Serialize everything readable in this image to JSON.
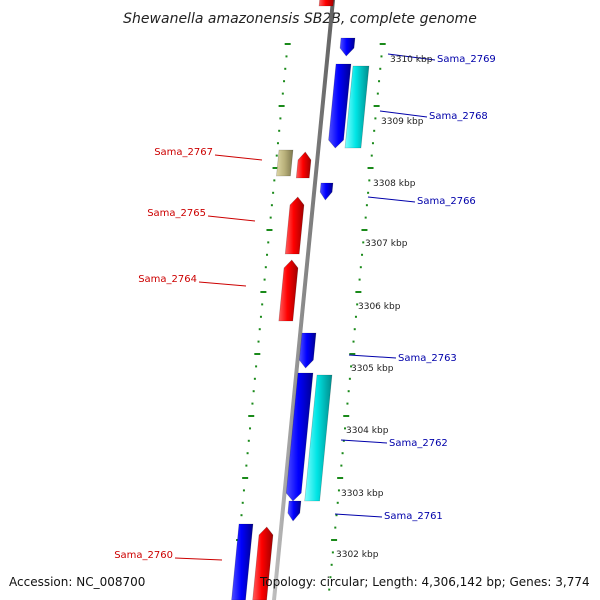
{
  "title": "Shewanella amazonensis SB2B, complete genome",
  "footer": {
    "accession": "Accession: NC_008700",
    "topology": "Topology: circular; Length: 4,306,142 bp; Genes: 3,774"
  },
  "kbp_labels": [
    "3310 kbp",
    "3309 kbp",
    "3308 kbp",
    "3307 kbp",
    "3306 kbp",
    "3305 kbp",
    "3304 kbp",
    "3303 kbp",
    "3302 kbp"
  ],
  "gene_labels_left": [
    "Sama_2767",
    "Sama_2765",
    "Sama_2764",
    "Sama_2760"
  ],
  "gene_labels_right": [
    "Sama_2769",
    "Sama_2768",
    "Sama_2766",
    "Sama_2763",
    "Sama_2762",
    "Sama_2761"
  ],
  "colors": {
    "forward_gene": "#ff0000",
    "reverse_gene": "#0000ff",
    "cyan_gene": "#00e5e5",
    "khaki_gene": "#b8b07a",
    "left_label": "#cc0000",
    "right_label": "#0000aa",
    "tick": "#1a8a1a",
    "backbone": "#909090"
  }
}
